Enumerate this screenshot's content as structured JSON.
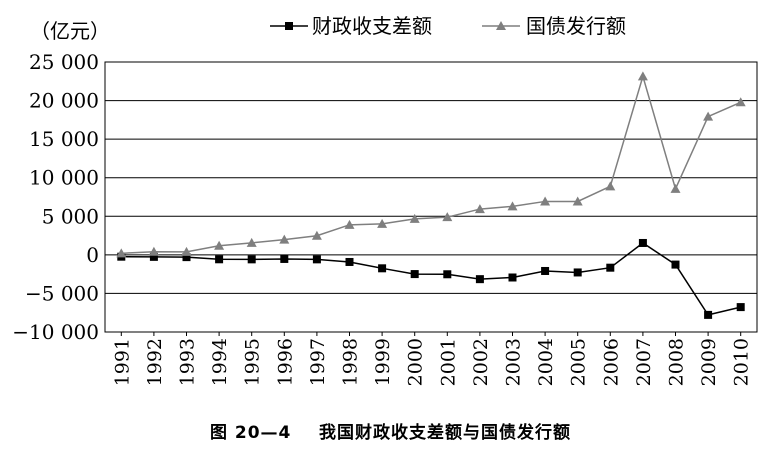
{
  "chart_data": {
    "type": "line",
    "unit_label": "（亿元）",
    "categories": [
      "1991",
      "1992",
      "1993",
      "1994",
      "1995",
      "1996",
      "1997",
      "1998",
      "1999",
      "2000",
      "2001",
      "2002",
      "2003",
      "2004",
      "2005",
      "2006",
      "2007",
      "2008",
      "2009",
      "2010"
    ],
    "series": [
      {
        "name": "财政收支差额",
        "color": "#000000",
        "marker": "square",
        "values": [
          -237,
          -259,
          -293,
          -574,
          -582,
          -530,
          -583,
          -922,
          -1744,
          -2491,
          -2517,
          -3150,
          -2935,
          -2090,
          -2281,
          -1663,
          1540,
          -1262,
          -7782,
          -6772
        ]
      },
      {
        "name": "国债发行额",
        "color": "#7f7f7f",
        "marker": "triangle",
        "values": [
          199,
          395,
          381,
          1175,
          1550,
          1967,
          2477,
          3891,
          4015,
          4657,
          4884,
          5934,
          6283,
          6924,
          6923,
          8883,
          23139,
          8558,
          17927,
          19778
        ]
      }
    ],
    "y_ticks": [
      "25 000",
      "20 000",
      "15 000",
      "10 000",
      "5 000",
      "0",
      "−5 000",
      "−10 000"
    ],
    "y_tick_values": [
      25000,
      20000,
      15000,
      10000,
      5000,
      0,
      -5000,
      -10000
    ],
    "ylim": [
      -10000,
      25000
    ],
    "grid": true,
    "legend_position": "top"
  },
  "caption": {
    "figure_no": "图 20—4",
    "title": "我国财政收支差额与国债发行额"
  }
}
